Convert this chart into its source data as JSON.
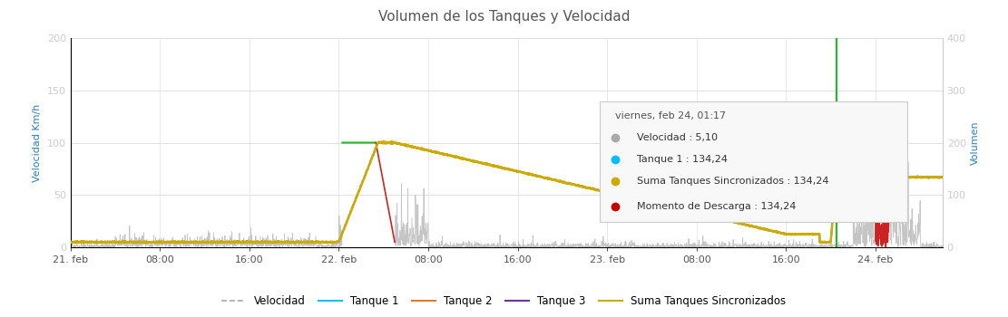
{
  "title": "Volumen de los Tanques y Velocidad",
  "title_color": "#555555",
  "ylabel_left": "Velocidad Km/h",
  "ylabel_right": "Volumen",
  "ylim_left": [
    0,
    200
  ],
  "ylim_right": [
    0,
    400
  ],
  "yticks_left": [
    0,
    50,
    100,
    150,
    200
  ],
  "yticks_right": [
    0,
    100,
    200,
    300,
    400
  ],
  "background_color": "#ffffff",
  "plot_bg_color": "#ffffff",
  "grid_color": "#e0e0e0",
  "xtick_labels": [
    "21. feb",
    "08:00",
    "16:00",
    "22. feb",
    "08:00",
    "16:00",
    "23. feb",
    "08:00",
    "16:00",
    "24. feb"
  ],
  "tick_positions": [
    0,
    8,
    16,
    24,
    32,
    40,
    48,
    56,
    64,
    72
  ],
  "legend_labels": [
    "Velocidad",
    "Tanque 1",
    "Tanque 2",
    "Tanque 3",
    "Suma Tanques Sincronizados"
  ],
  "legend_colors": [
    "#aaaaaa",
    "#00bfff",
    "#e87722",
    "#7030a0",
    "#ccaa00"
  ],
  "tooltip_title": "viernes, feb 24, 01:17",
  "tooltip_lines": [
    {
      "color": "#aaaaaa",
      "text": "Velocidad : 5,10"
    },
    {
      "color": "#00bfff",
      "text": "Tanque 1 : 134,24"
    },
    {
      "color": "#ccaa00",
      "text": "Suma Tanques Sincronizados : 134,24"
    },
    {
      "color": "#cc0000",
      "text": "Momento de Descarga : 134,24"
    }
  ],
  "xlim": [
    0,
    78
  ],
  "t_max": 78,
  "n_points": 3000,
  "green_line_t": 68.5,
  "tank_jump_t": 27.5,
  "tank_peak": 200,
  "tank_end": 25,
  "tank_refill_t": 68.5,
  "tank_refill_val": 134,
  "vel_green_start": 24.3,
  "vel_green_end": 27.3,
  "vel_green_val": 100,
  "vel_red_start": 27.3,
  "vel_red_end": 29.0,
  "marker_t": 72.0,
  "marker_vol": 134
}
